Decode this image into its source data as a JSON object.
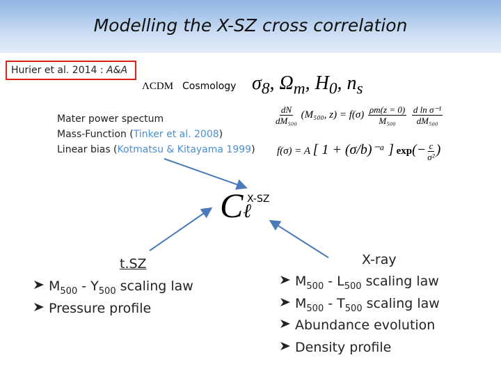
{
  "header": {
    "title": "Modelling the X-SZ cross correlation"
  },
  "reference": {
    "authors": "Hurier et al. 2014 : ",
    "journal": "A&A"
  },
  "cosmology": {
    "model": "ΛCDM",
    "label": "Cosmology",
    "parameters": [
      "σ",
      "8",
      ", Ω",
      "m",
      ", H",
      "0",
      ", n",
      "s"
    ]
  },
  "ingredients": [
    [
      "Mater power spectum"
    ],
    [
      "Mass-Function (",
      "Tinker et al. 2008",
      ")"
    ],
    [
      "Linear bias (",
      "Kotmatsu & Kitayama 1999",
      ")"
    ]
  ],
  "equations": {
    "mass_function": {
      "lhs_num": "dN",
      "lhs_den": "dM₅₀₀",
      "args": "(M₅₀₀, z) = f(σ)",
      "rho_num": "ρm(z = 0)",
      "rho_den": "M₅₀₀",
      "log_num": "d ln σ⁻¹",
      "log_den": "dM₅₀₀"
    },
    "multiplicity": {
      "lhs": "f(σ) = A",
      "bracket": "[ 1 + (σ/b)⁻ᵃ ]",
      "exp": "exp",
      "arg_num": "c",
      "arg_den": "σ²",
      "open": "(−",
      "close": ")"
    }
  },
  "center": {
    "symbol": "C",
    "index": "ℓ",
    "label": "X-SZ"
  },
  "tsz": {
    "title": "t.SZ",
    "items": [
      [
        "M",
        "500",
        " - Y",
        "500",
        " scaling law"
      ],
      [
        "Pressure profile"
      ]
    ]
  },
  "xray": {
    "title": "X-ray",
    "items": [
      [
        "M",
        "500",
        " - L",
        "500",
        " scaling law"
      ],
      [
        "M",
        "500",
        " - T",
        "500",
        " scaling law"
      ],
      [
        "Abundance evolution"
      ],
      [
        "Density profile"
      ]
    ]
  }
}
